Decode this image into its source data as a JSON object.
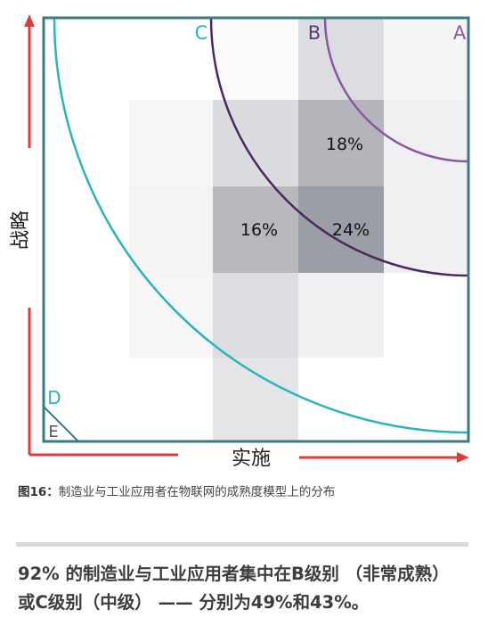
{
  "diagram": {
    "y_axis_label": "战略",
    "x_axis_label": "实施",
    "zone_labels": {
      "A": "A",
      "B": "B",
      "C": "C",
      "D": "D",
      "E": "E"
    },
    "grid_percentages": {
      "B2": "18%",
      "C1": "16%",
      "C2": "24%"
    },
    "colors": {
      "frame": "#3a7a80",
      "arrows": "#e03a3e",
      "arc_a": "#8a55a5",
      "arc_b": "#4a2860",
      "arc_c": "#2ab3bd",
      "arc_e": "#3a7a80"
    }
  },
  "caption": {
    "figure_number": "图16：",
    "text": "制造业与工业应用者在物联网的成熟度模型上的分布"
  },
  "summary": {
    "text": "92% 的制造业与工业应用者集中在B级别 （非常成熟）或C级别（中级） —— 分别为49%和43%。"
  }
}
